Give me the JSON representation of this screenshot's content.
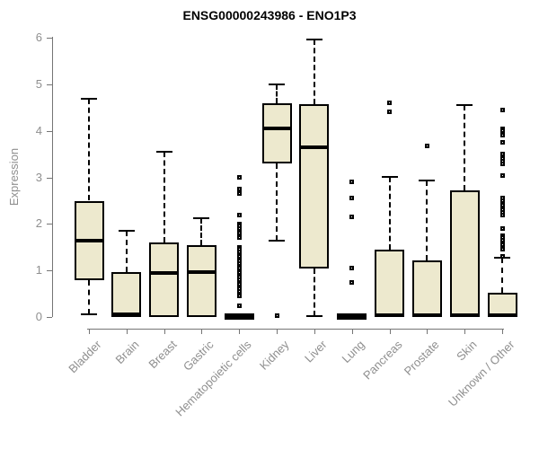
{
  "chart_data": {
    "type": "boxplot",
    "title": "ENSG00000243986 - ENO1P3",
    "ylabel": "Expression",
    "ylim": [
      0,
      6
    ],
    "yticks": [
      0,
      1,
      2,
      3,
      4,
      5,
      6
    ],
    "grid": false,
    "legend": false,
    "categories": [
      "Bladder",
      "Brain",
      "Breast",
      "Gastric",
      "Hematopoietic cells",
      "Kidney",
      "Liver",
      "Lung",
      "Pancreas",
      "Prostate",
      "Skin",
      "Unknown / Other"
    ],
    "boxes": [
      {
        "category": "Bladder",
        "low": 0.05,
        "q1": 0.8,
        "median": 1.65,
        "q3": 2.5,
        "high": 4.7,
        "outliers": []
      },
      {
        "category": "Brain",
        "low": 0,
        "q1": 0,
        "median": 0.05,
        "q3": 0.97,
        "high": 1.85,
        "outliers": []
      },
      {
        "category": "Breast",
        "low": 0,
        "q1": 0,
        "median": 0.95,
        "q3": 1.6,
        "high": 3.55,
        "outliers": []
      },
      {
        "category": "Gastric",
        "low": 0,
        "q1": 0,
        "median": 0.97,
        "q3": 1.55,
        "high": 2.12,
        "outliers": []
      },
      {
        "category": "Hematopoietic cells",
        "low": 0,
        "q1": 0,
        "median": 0.02,
        "q3": 0,
        "high": 0,
        "outliers": [
          3.0,
          2.75,
          2.7,
          2.65,
          2.2,
          2.0,
          1.95,
          1.9,
          1.8,
          1.75,
          1.7,
          1.5,
          1.45,
          1.4,
          1.35,
          1.3,
          1.25,
          1.2,
          1.15,
          1.1,
          1.05,
          1.0,
          0.95,
          0.9,
          0.85,
          0.8,
          0.75,
          0.7,
          0.65,
          0.6,
          0.55,
          0.5,
          0.45,
          0.25
        ]
      },
      {
        "category": "Kidney",
        "low": 1.65,
        "q1": 3.3,
        "median": 4.05,
        "q3": 4.6,
        "high": 5.0,
        "outliers": [
          0.02
        ]
      },
      {
        "category": "Liver",
        "low": 0.02,
        "q1": 1.05,
        "median": 3.65,
        "q3": 4.58,
        "high": 5.97,
        "outliers": []
      },
      {
        "category": "Lung",
        "low": 0,
        "q1": 0,
        "median": 0.02,
        "q3": 0,
        "high": 0,
        "outliers": [
          2.9,
          2.55,
          2.15,
          1.05,
          0.75
        ]
      },
      {
        "category": "Pancreas",
        "low": 0,
        "q1": 0,
        "median": 0.03,
        "q3": 1.45,
        "high": 3.02,
        "outliers": [
          4.6,
          4.42
        ]
      },
      {
        "category": "Prostate",
        "low": 0,
        "q1": 0,
        "median": 0.03,
        "q3": 1.22,
        "high": 2.93,
        "outliers": [
          3.67
        ]
      },
      {
        "category": "Skin",
        "low": 0,
        "q1": 0,
        "median": 0.03,
        "q3": 2.72,
        "high": 4.55,
        "outliers": []
      },
      {
        "category": "Unknown / Other",
        "low": 0,
        "q1": 0,
        "median": 0.03,
        "q3": 0.52,
        "high": 1.28,
        "outliers": [
          4.45,
          4.05,
          4.0,
          3.95,
          3.9,
          3.75,
          3.5,
          3.4,
          3.35,
          3.3,
          3.05,
          2.55,
          2.5,
          2.45,
          2.4,
          2.35,
          2.3,
          2.25,
          2.2,
          1.9,
          1.75,
          1.7,
          1.65,
          1.6,
          1.55,
          1.5,
          1.45,
          1.3
        ]
      }
    ],
    "style": {
      "box_fill": "#ede9ce",
      "box_border": "#000000",
      "median_color": "#000000",
      "whisker_color": "#000000",
      "axis_color": "#757575",
      "label_color": "#8f8f8f",
      "title_color": "#000000",
      "background": "#ffffff"
    }
  }
}
